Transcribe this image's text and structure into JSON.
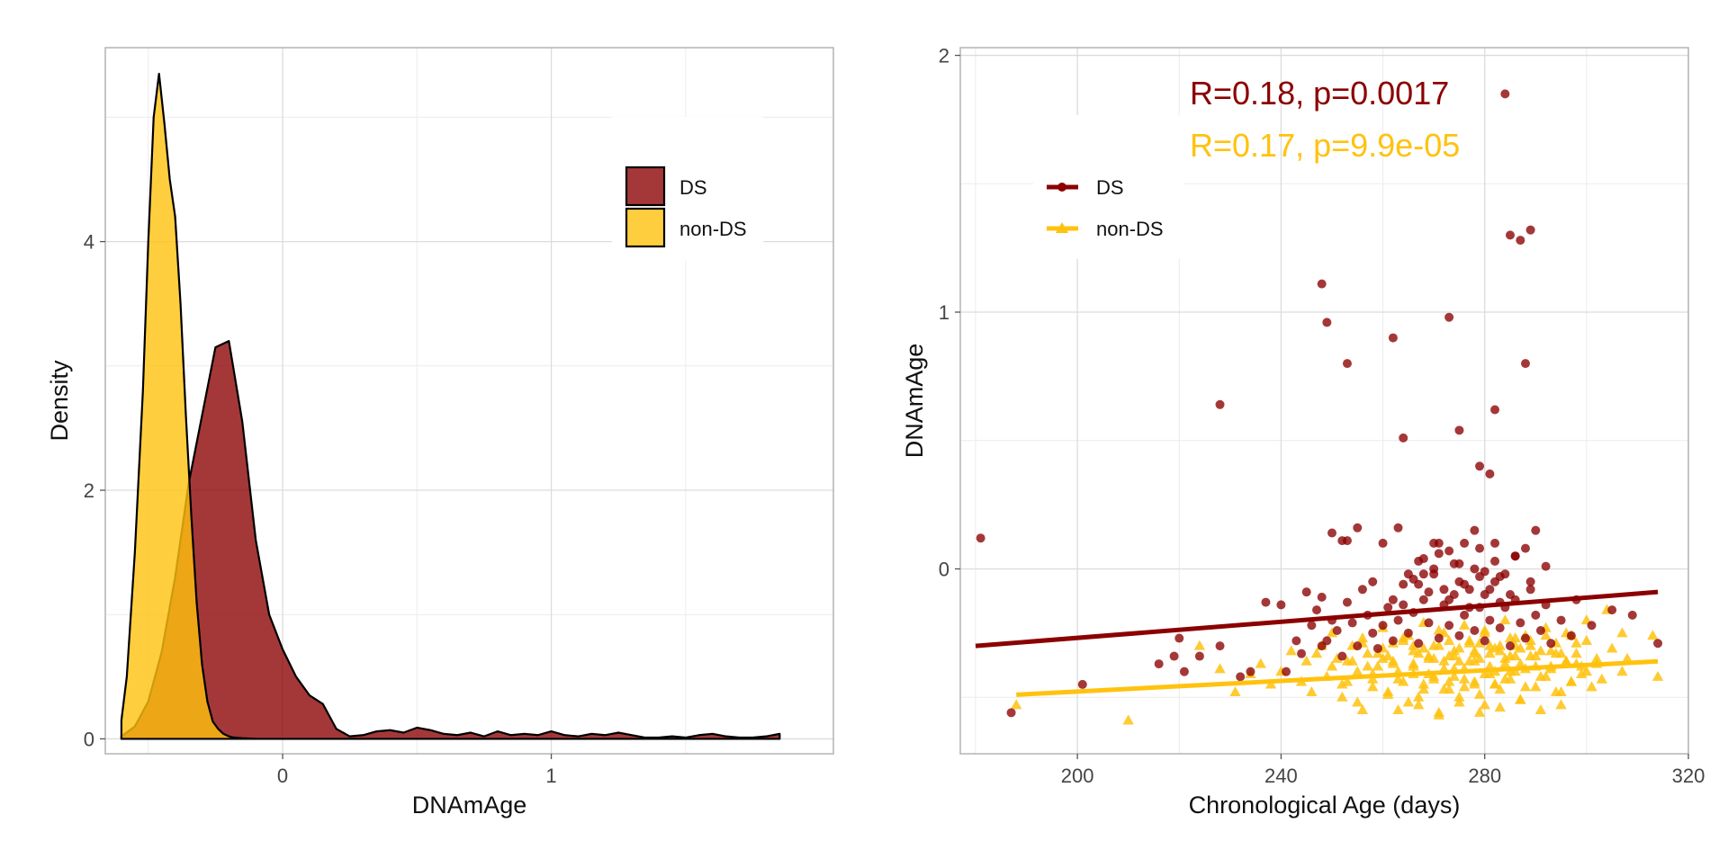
{
  "chart_data": [
    {
      "type": "area",
      "subtype": "density",
      "xlabel": "DNAmAge",
      "ylabel": "Density",
      "xlim": [
        -0.66,
        2.05
      ],
      "ylim": [
        -0.12,
        5.56
      ],
      "x_ticks": [
        0,
        1
      ],
      "y_ticks": [
        0,
        2,
        4
      ],
      "x_tick_labels": [
        "0",
        "1"
      ],
      "y_tick_labels": [
        "0",
        "2",
        "4"
      ],
      "grid": true,
      "legend_position": "top-right",
      "series": [
        {
          "name": "DS",
          "color": "#8B0000",
          "fill_opacity": 0.78,
          "x": [
            -0.6,
            -0.55,
            -0.5,
            -0.45,
            -0.4,
            -0.35,
            -0.3,
            -0.25,
            -0.2,
            -0.15,
            -0.1,
            -0.05,
            0.0,
            0.05,
            0.1,
            0.15,
            0.2,
            0.25,
            0.3,
            0.35,
            0.4,
            0.45,
            0.5,
            0.55,
            0.6,
            0.65,
            0.7,
            0.75,
            0.8,
            0.85,
            0.9,
            0.95,
            1.0,
            1.05,
            1.1,
            1.15,
            1.2,
            1.25,
            1.3,
            1.35,
            1.4,
            1.45,
            1.5,
            1.55,
            1.6,
            1.65,
            1.7,
            1.75,
            1.8,
            1.85
          ],
          "y": [
            0.02,
            0.1,
            0.3,
            0.7,
            1.3,
            2.05,
            2.6,
            3.15,
            3.2,
            2.55,
            1.6,
            1.0,
            0.72,
            0.5,
            0.35,
            0.28,
            0.08,
            0.02,
            0.03,
            0.06,
            0.07,
            0.05,
            0.09,
            0.07,
            0.04,
            0.03,
            0.05,
            0.02,
            0.06,
            0.03,
            0.04,
            0.03,
            0.06,
            0.03,
            0.02,
            0.04,
            0.03,
            0.05,
            0.03,
            0.01,
            0.01,
            0.02,
            0.01,
            0.03,
            0.04,
            0.02,
            0.01,
            0.01,
            0.02,
            0.04
          ]
        },
        {
          "name": "non-DS",
          "color": "#FFC20E",
          "fill_opacity": 0.8,
          "x": [
            -0.6,
            -0.58,
            -0.55,
            -0.52,
            -0.5,
            -0.48,
            -0.46,
            -0.44,
            -0.42,
            -0.4,
            -0.38,
            -0.36,
            -0.34,
            -0.32,
            -0.3,
            -0.28,
            -0.26,
            -0.24,
            -0.22,
            -0.2,
            -0.18,
            -0.15,
            -0.12,
            -0.1
          ],
          "y": [
            0.15,
            0.5,
            1.5,
            2.8,
            4.0,
            5.0,
            5.35,
            4.95,
            4.5,
            4.2,
            3.5,
            2.6,
            1.8,
            1.1,
            0.6,
            0.3,
            0.14,
            0.08,
            0.04,
            0.02,
            0.01,
            0.005,
            0.002,
            0.0
          ]
        }
      ]
    },
    {
      "type": "scatter",
      "xlabel": "Chronological Age (days)",
      "ylabel": "DNAmAge",
      "xlim": [
        177,
        320
      ],
      "ylim": [
        -0.72,
        2.03
      ],
      "x_ticks": [
        200,
        240,
        280,
        320
      ],
      "y_ticks": [
        0,
        1,
        2
      ],
      "x_tick_labels": [
        "200",
        "240",
        "280",
        "320"
      ],
      "y_tick_labels": [
        "0",
        "1",
        "2"
      ],
      "grid": true,
      "legend_position": "top-left",
      "annotations": [
        {
          "text": "R=0.18, p=0.0017",
          "color": "#8B0000"
        },
        {
          "text": "R=0.17, p=9.9e-05",
          "color": "#FFC20E"
        }
      ],
      "series": [
        {
          "name": "DS",
          "color": "#8B0000",
          "marker": "circle",
          "regression": {
            "x": [
              180,
              314
            ],
            "y": [
              -0.3,
              -0.09
            ]
          },
          "x": [
            181,
            187,
            201,
            216,
            219,
            220,
            221,
            224,
            228,
            232,
            234,
            237,
            240,
            241,
            243,
            244,
            245,
            246,
            247,
            248,
            248,
            249,
            250,
            251,
            252,
            253,
            254,
            255,
            256,
            257,
            258,
            259,
            260,
            261,
            262,
            263,
            264,
            265,
            266,
            267,
            268,
            269,
            270,
            271,
            272,
            273,
            274,
            275,
            276,
            277,
            278,
            279,
            280,
            281,
            282,
            283,
            284,
            285,
            286,
            287,
            288,
            289,
            290,
            291,
            292,
            293,
            295,
            297,
            298,
            301,
            305,
            309,
            314,
            258,
            262,
            265,
            268,
            270,
            272,
            274,
            276,
            278,
            280,
            282,
            284,
            264,
            266,
            269,
            271,
            273,
            275,
            277,
            279,
            281,
            283,
            285,
            255,
            260,
            263,
            267,
            270,
            273,
            276,
            279,
            282,
            286,
            289,
            248,
            249,
            252,
            253,
            262,
            264,
            273,
            275,
            279,
            281,
            282,
            284,
            285,
            287,
            288,
            289,
            228,
            250,
            253,
            267,
            268,
            271,
            275,
            278,
            280,
            283,
            286,
            288,
            290,
            292
          ],
          "y": [
            0.12,
            -0.56,
            -0.45,
            -0.37,
            -0.34,
            -0.27,
            -0.4,
            -0.34,
            -0.3,
            -0.42,
            -0.4,
            -0.13,
            -0.14,
            -0.4,
            -0.28,
            -0.33,
            -0.09,
            -0.22,
            -0.16,
            -0.3,
            -0.11,
            -0.28,
            -0.2,
            -0.24,
            -0.34,
            -0.13,
            -0.21,
            -0.3,
            -0.08,
            -0.18,
            -0.25,
            -0.31,
            -0.22,
            -0.15,
            -0.28,
            -0.2,
            -0.06,
            -0.25,
            -0.17,
            -0.29,
            -0.12,
            -0.21,
            -0.02,
            -0.27,
            -0.14,
            -0.22,
            -0.1,
            -0.26,
            -0.18,
            -0.08,
            -0.24,
            -0.15,
            -0.28,
            -0.2,
            -0.05,
            -0.23,
            -0.15,
            -0.3,
            -0.12,
            -0.21,
            -0.27,
            -0.08,
            -0.18,
            -0.24,
            -0.14,
            -0.29,
            -0.2,
            -0.26,
            -0.12,
            -0.22,
            -0.16,
            -0.18,
            -0.29,
            -0.05,
            -0.12,
            -0.02,
            0.04,
            0.0,
            -0.08,
            0.02,
            -0.06,
            0.0,
            -0.1,
            0.03,
            -0.02,
            -0.14,
            -0.04,
            -0.09,
            0.06,
            -0.12,
            -0.05,
            -0.15,
            -0.03,
            -0.08,
            -0.13,
            -0.1,
            0.16,
            0.1,
            0.16,
            0.03,
            0.1,
            0.07,
            0.1,
            0.08,
            0.1,
            0.05,
            -0.05,
            1.11,
            0.96,
            0.11,
            0.8,
            0.9,
            0.51,
            0.98,
            0.54,
            0.4,
            0.37,
            0.62,
            1.85,
            1.3,
            1.28,
            0.8,
            1.32,
            0.64,
            0.14,
            0.11,
            -0.06,
            -0.02,
            0.1,
            0.02,
            0.15,
            -0.01,
            -0.03,
            0.05,
            0.08,
            0.15,
            0.01
          ]
        },
        {
          "name": "non-DS",
          "color": "#FFC20E",
          "marker": "triangle",
          "regression": {
            "x": [
              188,
              314
            ],
            "y": [
              -0.49,
              -0.36
            ]
          },
          "x": [
            188,
            210,
            224,
            228,
            231,
            234,
            236,
            238,
            240,
            242,
            244,
            245,
            246,
            247,
            248,
            249,
            250,
            251,
            252,
            253,
            254,
            255,
            256,
            257,
            258,
            259,
            260,
            261,
            262,
            263,
            264,
            265,
            266,
            267,
            268,
            269,
            270,
            271,
            272,
            273,
            274,
            275,
            276,
            277,
            278,
            279,
            280,
            281,
            282,
            283,
            284,
            285,
            286,
            287,
            288,
            289,
            290,
            291,
            292,
            293,
            294,
            295,
            296,
            297,
            298,
            299,
            300,
            301,
            302,
            303,
            305,
            307,
            308,
            313,
            314,
            250,
            253,
            256,
            259,
            262,
            265,
            268,
            271,
            274,
            277,
            280,
            283,
            286,
            289,
            292,
            295,
            298,
            252,
            255,
            258,
            261,
            264,
            267,
            270,
            273,
            276,
            279,
            282,
            285,
            288,
            291,
            294,
            297,
            300,
            254,
            257,
            260,
            263,
            266,
            269,
            272,
            275,
            278,
            281,
            284,
            287,
            290,
            293,
            296,
            299,
            302,
            256,
            260,
            264,
            268,
            272,
            276,
            280,
            284,
            288,
            292,
            296,
            263,
            267,
            271,
            275,
            279,
            283,
            287,
            291,
            295,
            258,
            262,
            266,
            270,
            274,
            278,
            282,
            286,
            290,
            294,
            298,
            268,
            270,
            272,
            274,
            276,
            278,
            280,
            282,
            284,
            286,
            266,
            269,
            271,
            273,
            275,
            277,
            279,
            281,
            283,
            285,
            287,
            261,
            266,
            273,
            278,
            281,
            285,
            289,
            293,
            297,
            300,
            304,
            307
          ],
          "y": [
            -0.53,
            -0.59,
            -0.3,
            -0.39,
            -0.48,
            -0.41,
            -0.37,
            -0.45,
            -0.4,
            -0.32,
            -0.44,
            -0.36,
            -0.48,
            -0.33,
            -0.3,
            -0.42,
            -0.38,
            -0.35,
            -0.5,
            -0.44,
            -0.3,
            -0.4,
            -0.55,
            -0.33,
            -0.46,
            -0.38,
            -0.31,
            -0.49,
            -0.36,
            -0.43,
            -0.28,
            -0.52,
            -0.38,
            -0.33,
            -0.47,
            -0.41,
            -0.3,
            -0.56,
            -0.36,
            -0.44,
            -0.32,
            -0.5,
            -0.39,
            -0.29,
            -0.45,
            -0.35,
            -0.53,
            -0.41,
            -0.31,
            -0.47,
            -0.37,
            -0.43,
            -0.3,
            -0.51,
            -0.39,
            -0.34,
            -0.46,
            -0.32,
            -0.42,
            -0.38,
            -0.29,
            -0.48,
            -0.36,
            -0.44,
            -0.33,
            -0.41,
            -0.28,
            -0.46,
            -0.37,
            -0.43,
            -0.31,
            -0.4,
            -0.35,
            -0.26,
            -0.42,
            -0.25,
            -0.36,
            -0.27,
            -0.33,
            -0.29,
            -0.26,
            -0.31,
            -0.24,
            -0.34,
            -0.28,
            -0.25,
            -0.32,
            -0.27,
            -0.3,
            -0.26,
            -0.33,
            -0.29,
            -0.45,
            -0.52,
            -0.41,
            -0.48,
            -0.44,
            -0.5,
            -0.42,
            -0.47,
            -0.43,
            -0.49,
            -0.45,
            -0.4,
            -0.46,
            -0.42,
            -0.48,
            -0.44,
            -0.4,
            -0.36,
            -0.38,
            -0.35,
            -0.4,
            -0.37,
            -0.34,
            -0.39,
            -0.36,
            -0.33,
            -0.38,
            -0.35,
            -0.37,
            -0.34,
            -0.39,
            -0.36,
            -0.38,
            -0.35,
            -0.29,
            -0.23,
            -0.27,
            -0.21,
            -0.25,
            -0.22,
            -0.24,
            -0.2,
            -0.26,
            -0.23,
            -0.25,
            -0.55,
            -0.53,
            -0.57,
            -0.52,
            -0.56,
            -0.54,
            -0.51,
            -0.55,
            -0.53,
            -0.43,
            -0.37,
            -0.41,
            -0.35,
            -0.39,
            -0.36,
            -0.4,
            -0.34,
            -0.38,
            -0.33,
            -0.37,
            -0.45,
            -0.43,
            -0.47,
            -0.42,
            -0.46,
            -0.44,
            -0.41,
            -0.45,
            -0.43,
            -0.4,
            -0.32,
            -0.35,
            -0.3,
            -0.34,
            -0.31,
            -0.36,
            -0.29,
            -0.33,
            -0.3,
            -0.34,
            -0.31,
            -0.34,
            -0.3,
            -0.28,
            -0.32,
            -0.3,
            -0.27,
            -0.28,
            -0.32,
            -0.26,
            -0.2,
            -0.16,
            -0.25
          ]
        }
      ]
    }
  ]
}
